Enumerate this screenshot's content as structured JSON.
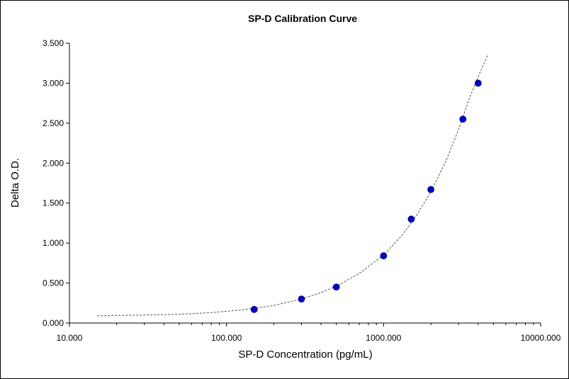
{
  "chart_data": {
    "type": "scatter",
    "title": "SP-D Calibration Curve",
    "xlabel": "SP-D Concentration (pg/mL)",
    "ylabel": "Delta O.D.",
    "x_scale": "log",
    "xlim": [
      10,
      10000
    ],
    "ylim": [
      0,
      3.5
    ],
    "x_ticks": [
      10,
      100,
      1000,
      10000
    ],
    "x_tick_labels": [
      "10.000",
      "100.000",
      "1000.000",
      "10000.000"
    ],
    "y_ticks": [
      0,
      0.5,
      1,
      1.5,
      2,
      2.5,
      3,
      3.5
    ],
    "y_tick_labels": [
      "0.000",
      "0.500",
      "1.000",
      "1.500",
      "2.000",
      "2.500",
      "3.000",
      "3.500"
    ],
    "grid": false,
    "legend": false,
    "series": [
      {
        "points": [
          {
            "x": 150,
            "y": 0.17
          },
          {
            "x": 300,
            "y": 0.3
          },
          {
            "x": 500,
            "y": 0.45
          },
          {
            "x": 1000,
            "y": 0.84
          },
          {
            "x": 1500,
            "y": 1.3
          },
          {
            "x": 2000,
            "y": 1.67
          },
          {
            "x": 3200,
            "y": 2.55
          },
          {
            "x": 4000,
            "y": 3.0
          }
        ],
        "color": "#0000cc"
      }
    ],
    "fit_curve": {
      "style": "dashed",
      "color": "#555555",
      "points": [
        {
          "x": 15,
          "y": 0.09
        },
        {
          "x": 30,
          "y": 0.1
        },
        {
          "x": 50,
          "y": 0.11
        },
        {
          "x": 80,
          "y": 0.13
        },
        {
          "x": 120,
          "y": 0.16
        },
        {
          "x": 200,
          "y": 0.22
        },
        {
          "x": 300,
          "y": 0.3
        },
        {
          "x": 400,
          "y": 0.38
        },
        {
          "x": 500,
          "y": 0.46
        },
        {
          "x": 700,
          "y": 0.62
        },
        {
          "x": 1000,
          "y": 0.85
        },
        {
          "x": 1300,
          "y": 1.09
        },
        {
          "x": 1600,
          "y": 1.33
        },
        {
          "x": 2000,
          "y": 1.64
        },
        {
          "x": 2500,
          "y": 2.03
        },
        {
          "x": 3000,
          "y": 2.42
        },
        {
          "x": 3500,
          "y": 2.8
        },
        {
          "x": 4000,
          "y": 3.08
        },
        {
          "x": 4600,
          "y": 3.35
        }
      ]
    }
  }
}
